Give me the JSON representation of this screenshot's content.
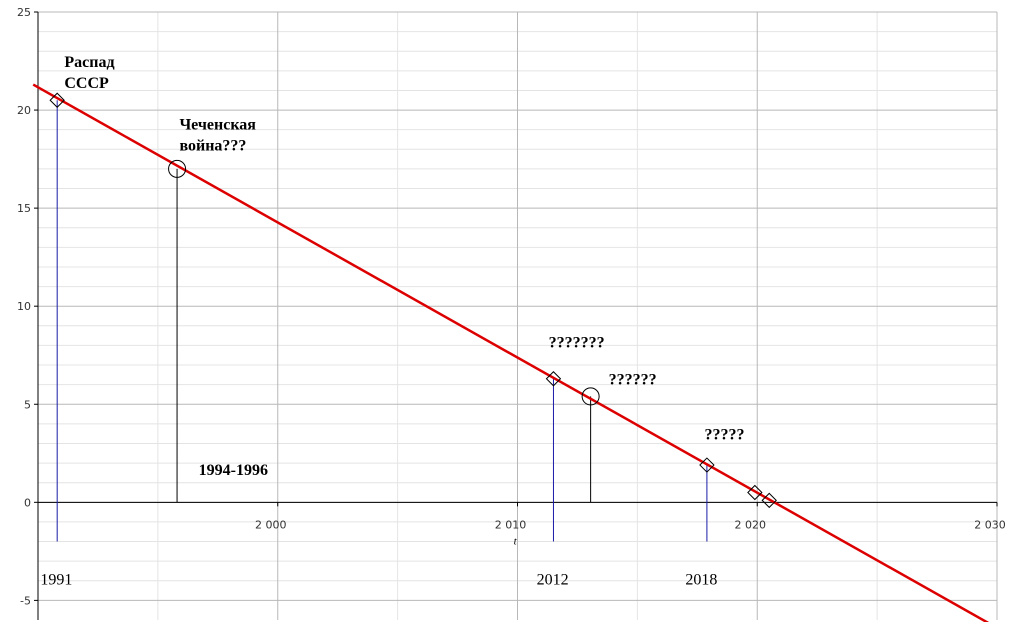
{
  "chart_data": {
    "type": "line",
    "xlabel": "t",
    "ylabel": "",
    "xlim": [
      1990,
      2030
    ],
    "ylim": [
      -6,
      25
    ],
    "x_ticks": [
      2000,
      2010,
      2020,
      2030
    ],
    "x_tick_labels": [
      "2 000",
      "2 010",
      "2 020",
      "2 030"
    ],
    "y_ticks": [
      -5,
      0,
      5,
      10,
      15,
      20,
      25
    ],
    "y_tick_labels": [
      "-5",
      "0",
      "5",
      "10",
      "15",
      "20",
      "25"
    ],
    "grid": true,
    "colors": {
      "trend": "#dd0000",
      "blue_stem": "#1a1aa8",
      "black_stem": "#000000",
      "grid_major": "#b8b8b8",
      "grid_minor": "#e4e4e4"
    },
    "series": [
      {
        "x": [
          1989.8,
          2030
        ],
        "y": [
          21.3,
          -6.4
        ]
      }
    ],
    "points": [
      {
        "x": 1990.8,
        "y": 20.5,
        "marker": "diamond",
        "stem": "blue",
        "stem_to": -2
      },
      {
        "x": 1995.8,
        "y": 17.0,
        "marker": "circle",
        "stem": "black",
        "stem_to": 0
      },
      {
        "x": 2011.5,
        "y": 6.3,
        "marker": "diamond",
        "stem": "blue",
        "stem_to": -2
      },
      {
        "x": 2013.05,
        "y": 5.4,
        "marker": "circle",
        "stem": "black",
        "stem_to": 0
      },
      {
        "x": 2017.9,
        "y": 1.9,
        "marker": "diamond",
        "stem": "blue",
        "stem_to": -2
      },
      {
        "x": 2019.9,
        "y": 0.5,
        "marker": "diamond",
        "stem": "none"
      },
      {
        "x": 2020.5,
        "y": 0.1,
        "marker": "diamond",
        "stem": "none"
      }
    ],
    "annotations": [
      {
        "lines": [
          "Распад",
          "СССР"
        ],
        "x": 1991.1,
        "y": 22.2,
        "style": "bold"
      },
      {
        "lines": [
          "Чеченская",
          "война???"
        ],
        "x": 1995.9,
        "y": 19.0,
        "style": "bold"
      },
      {
        "lines": [
          "1994-1996"
        ],
        "x": 1996.7,
        "y": 1.4,
        "style": "bold"
      },
      {
        "lines": [
          "???????"
        ],
        "x": 2011.3,
        "y": 7.9,
        "style": "bold"
      },
      {
        "lines": [
          "??????"
        ],
        "x": 2013.8,
        "y": 6.0,
        "style": "bold"
      },
      {
        "lines": [
          "?????"
        ],
        "x": 2017.8,
        "y": 3.2,
        "style": "bold"
      },
      {
        "lines": [
          "1991"
        ],
        "x": 1990.1,
        "y": -4.2,
        "style": "normal"
      },
      {
        "lines": [
          "2012"
        ],
        "x": 2010.8,
        "y": -4.2,
        "style": "normal"
      },
      {
        "lines": [
          "2018"
        ],
        "x": 2017.0,
        "y": -4.2,
        "style": "normal"
      }
    ]
  }
}
